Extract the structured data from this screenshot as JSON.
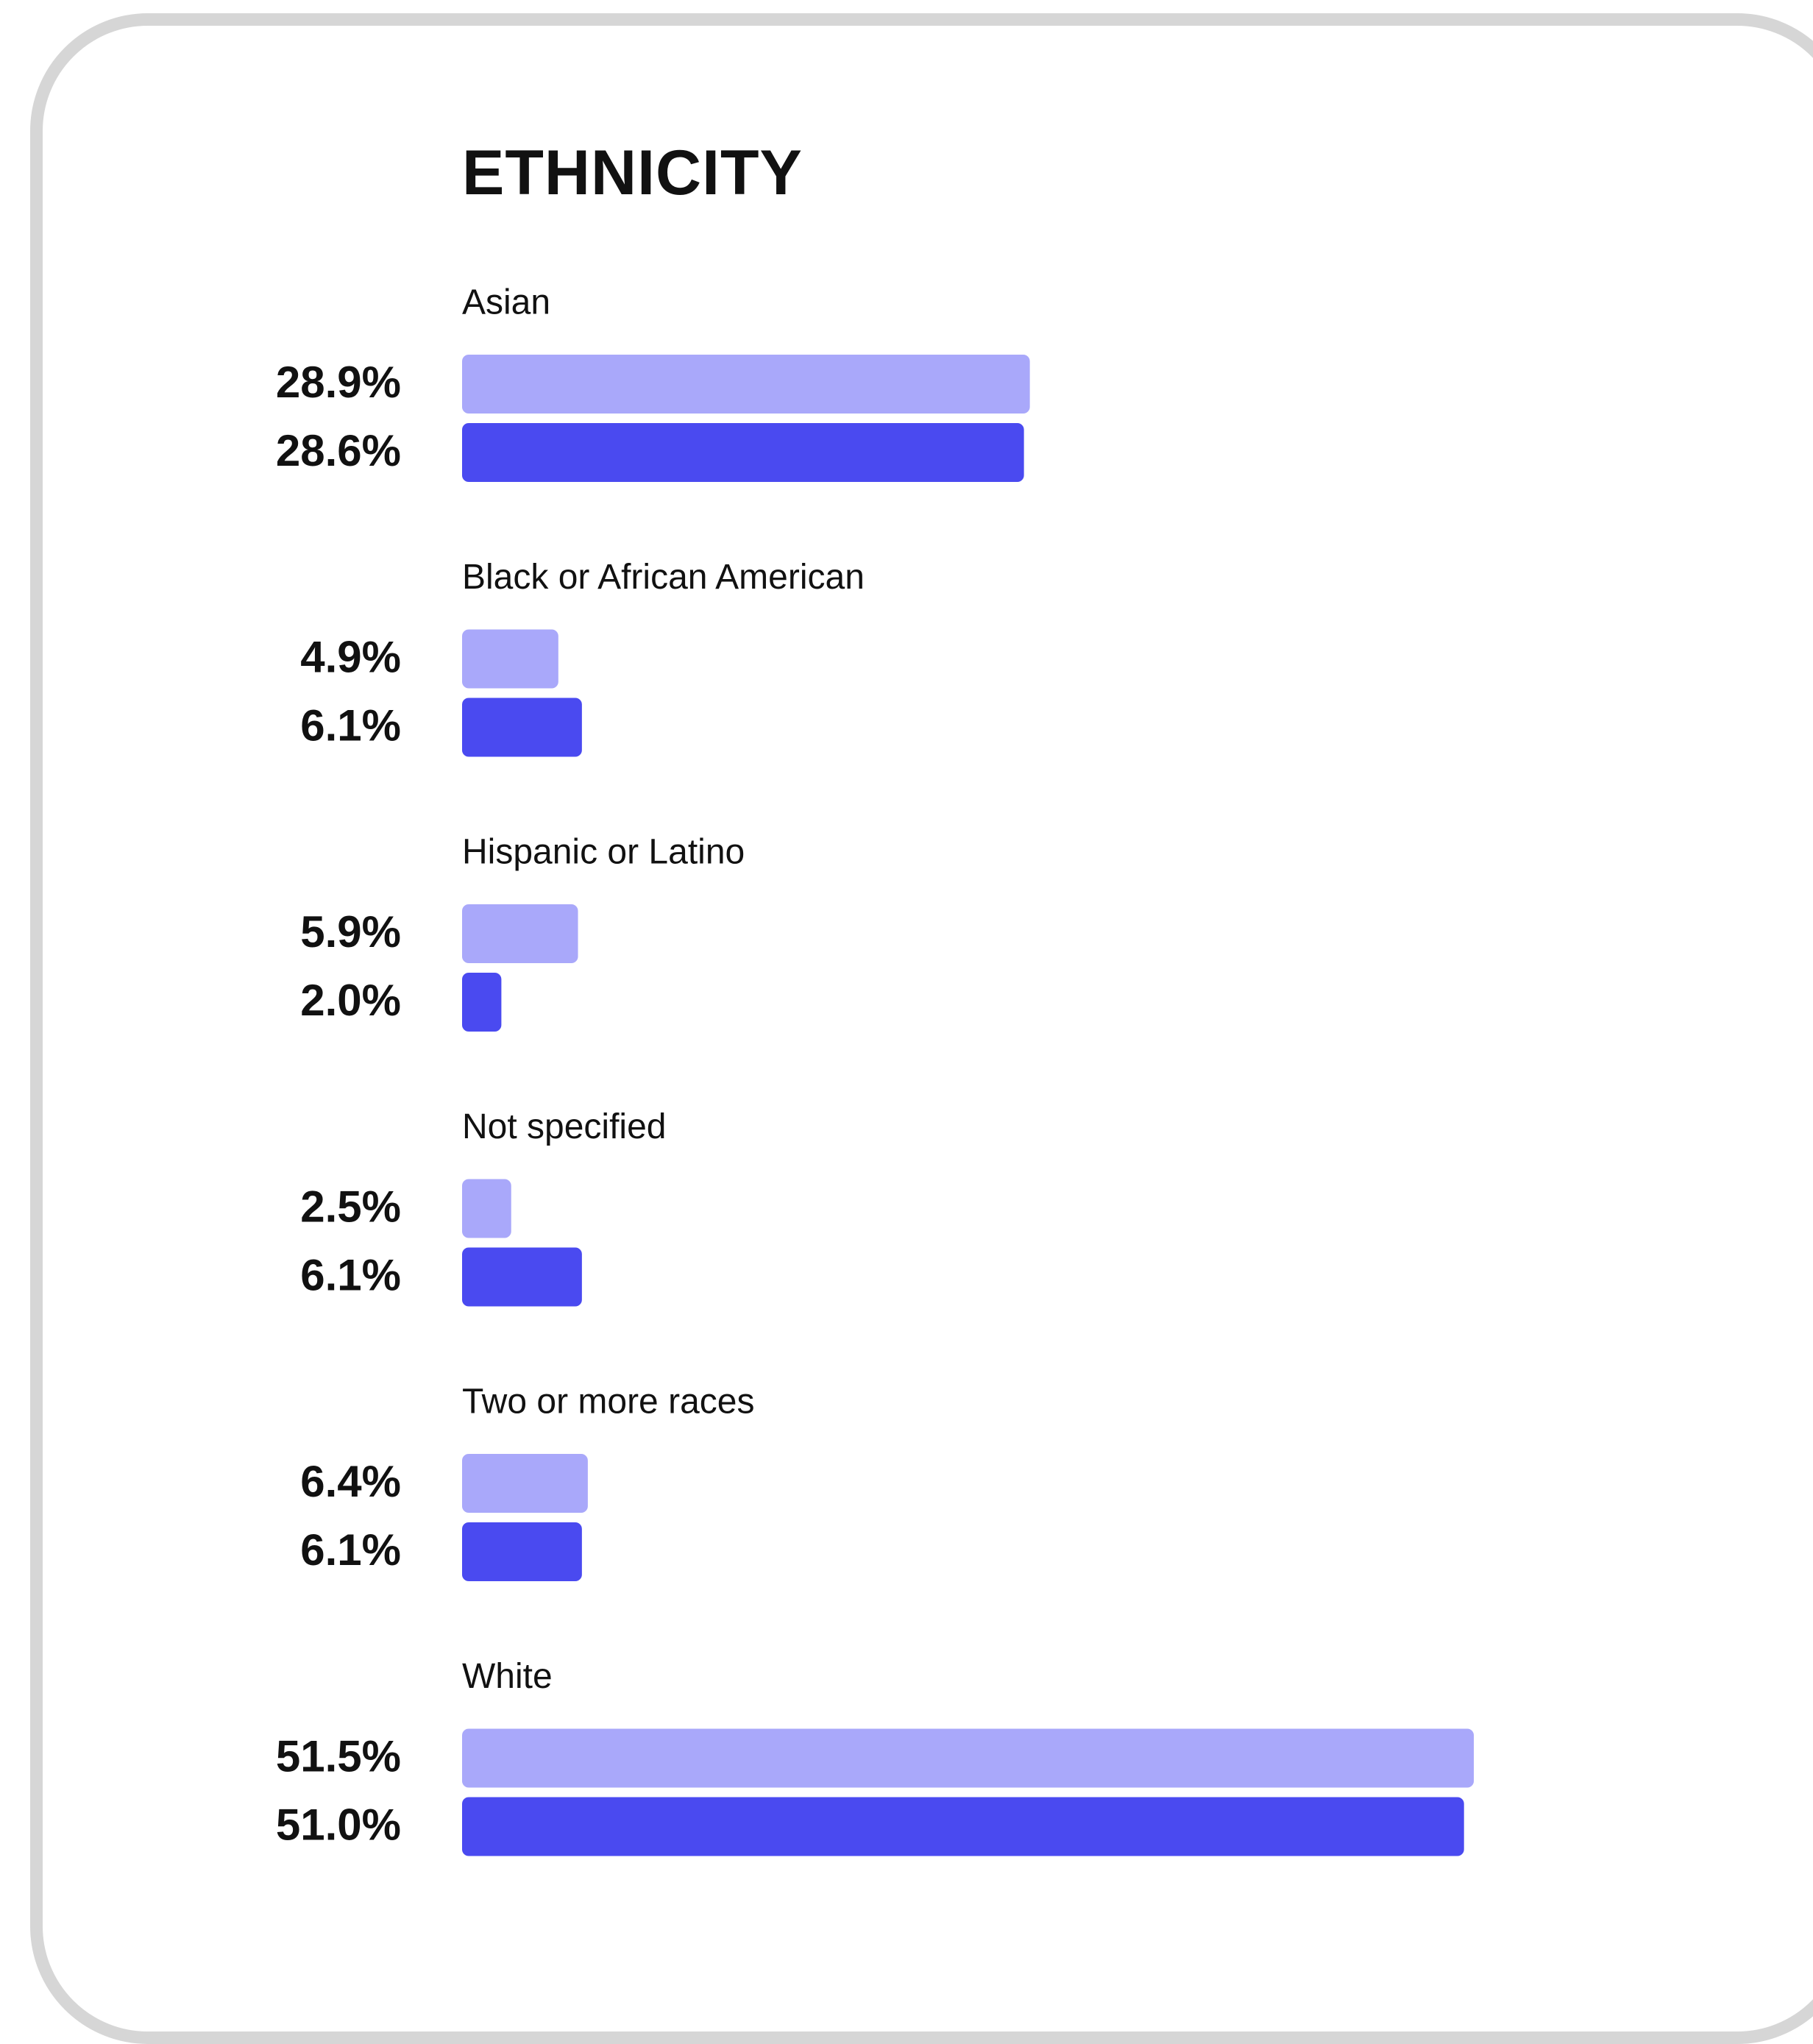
{
  "colors": {
    "series_a": "#a9a8fa",
    "series_b": "#4a4af0",
    "card_border": "#d6d6d6",
    "text": "#111111"
  },
  "chart_data": {
    "type": "bar",
    "orientation": "horizontal",
    "title": "ETHNICITY",
    "categories": [
      "Asian",
      "Black or African American",
      "Hispanic or Latino",
      "Not specified",
      "Two or more races",
      "White"
    ],
    "series": [
      {
        "values": [
          28.9,
          4.9,
          5.9,
          2.5,
          6.4,
          51.5
        ],
        "labels": [
          "28.9%",
          "4.9%",
          "5.9%",
          "2.5%",
          "6.4%",
          "51.5%"
        ]
      },
      {
        "values": [
          28.6,
          6.1,
          2.0,
          6.1,
          6.1,
          51.0
        ],
        "labels": [
          "28.6%",
          "6.1%",
          "2.0%",
          "6.1%",
          "6.1%",
          "51.0%"
        ]
      }
    ],
    "xlim": [
      0,
      60
    ],
    "grid": false,
    "legend": "none"
  }
}
